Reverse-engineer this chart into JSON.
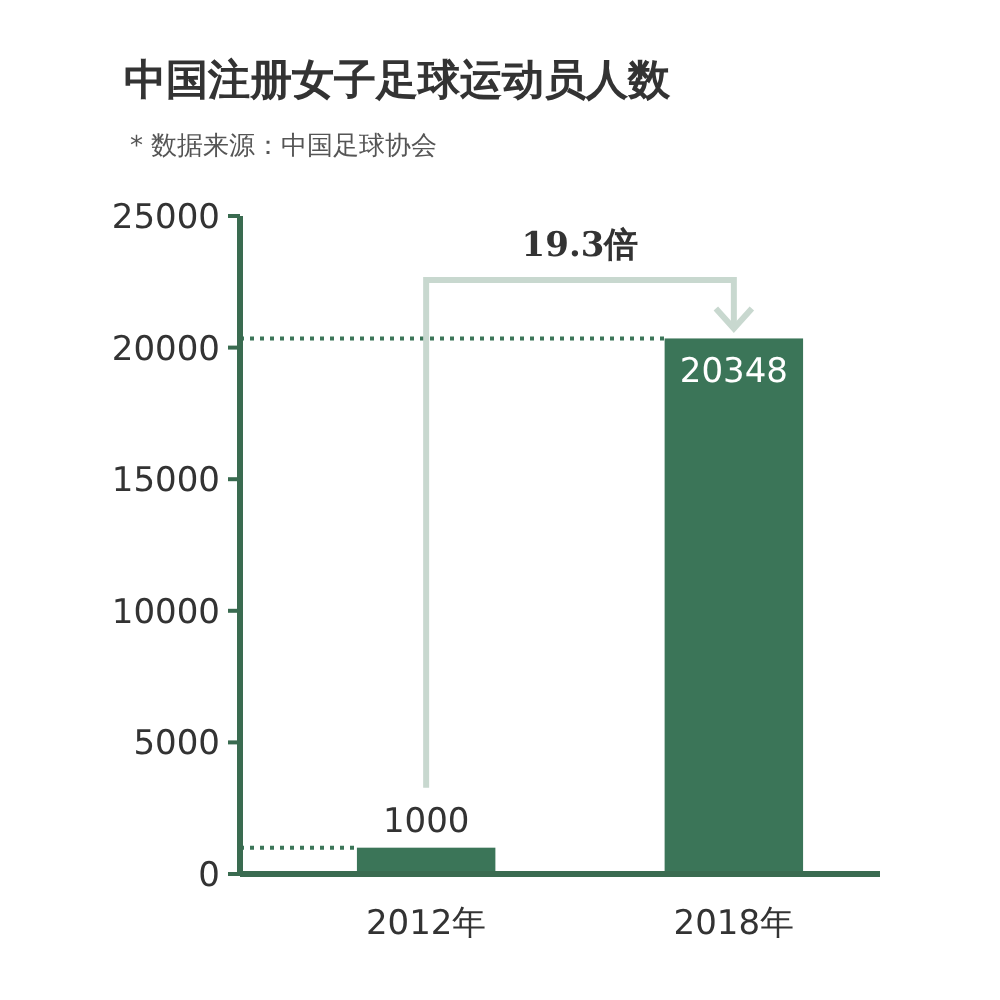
{
  "chart_data": {
    "type": "bar",
    "title": "中国注册女子足球运动员人数",
    "subtitle": "* 数据来源：中国足球协会",
    "categories": [
      "2012年",
      "2018年"
    ],
    "values": [
      1000,
      20348
    ],
    "color": "#3b7558",
    "ylim": [
      0,
      25000
    ],
    "yticks": [
      0,
      5000,
      10000,
      15000,
      20000,
      25000
    ],
    "data_labels": true,
    "ref_lines": [
      {
        "axis": "y",
        "value": 1000,
        "color": "#3b7558",
        "line_style": "dotted"
      },
      {
        "axis": "y",
        "value": 20348,
        "color": "#3b7558",
        "line_style": "dotted"
      }
    ],
    "annotations": [
      "19.3倍"
    ]
  }
}
